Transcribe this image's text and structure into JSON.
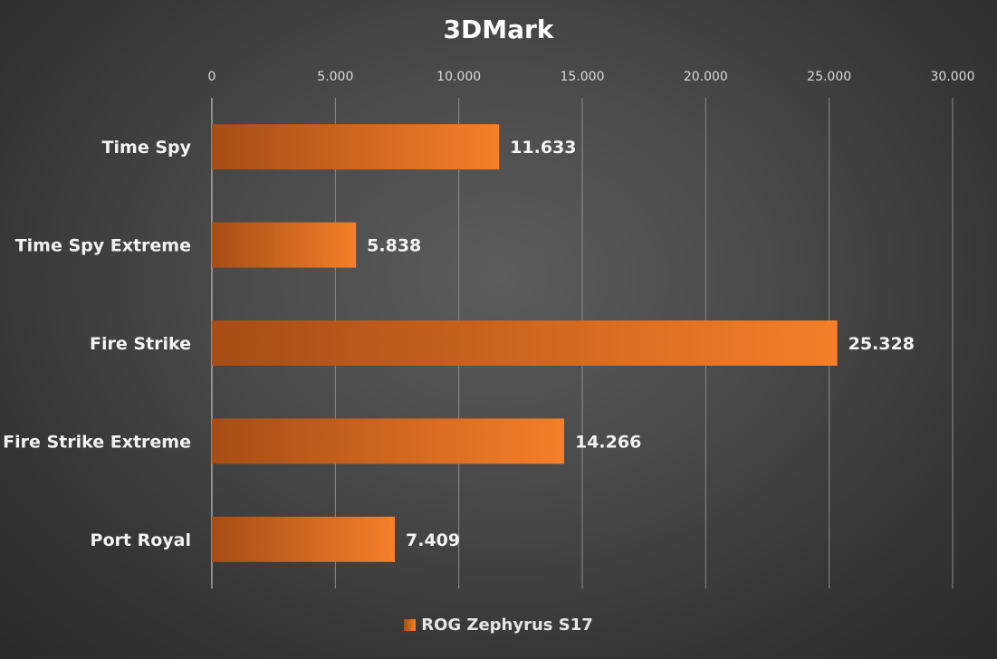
{
  "chart_data": {
    "type": "bar",
    "orientation": "horizontal",
    "title": "3DMark",
    "categories": [
      "Time Spy",
      "Time Spy Extreme",
      "Fire Strike",
      "Fire Strike Extreme",
      "Port Royal"
    ],
    "series": [
      {
        "name": "ROG Zephyrus S17",
        "values": [
          11633,
          5838,
          25328,
          14266,
          7409
        ],
        "value_labels": [
          "11.633",
          "5.838",
          "25.328",
          "14.266",
          "7.409"
        ]
      }
    ],
    "xlim": [
      0,
      30000
    ],
    "x_ticks": [
      0,
      5000,
      10000,
      15000,
      20000,
      25000,
      30000
    ],
    "x_tick_labels": [
      "0",
      "5.000",
      "10.000",
      "15.000",
      "20.000",
      "25.000",
      "30.000"
    ],
    "xlabel": "",
    "ylabel": "",
    "x_axis_position": "top",
    "grid": true,
    "legend": "bottom",
    "colors": {
      "bar_start": "#a64d15",
      "bar_end": "#f57f2a",
      "gridline": "#8c8c8c",
      "text": "#f2f2f2"
    }
  }
}
